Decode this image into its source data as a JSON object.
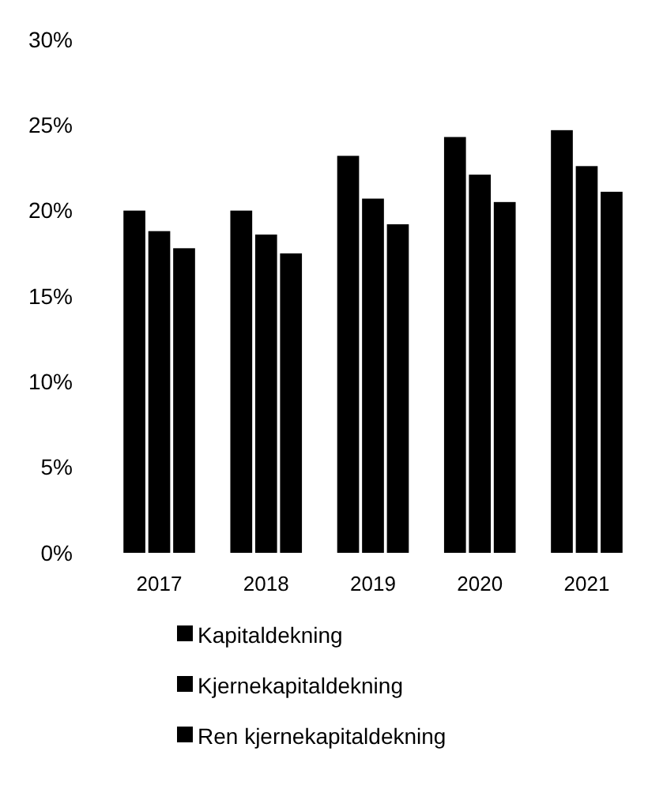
{
  "chart_data": {
    "type": "bar",
    "categories": [
      "2017",
      "2018",
      "2019",
      "2020",
      "2021"
    ],
    "series": [
      {
        "name": "Kapitaldekning",
        "color": "#000000",
        "values": [
          20.0,
          20.0,
          23.2,
          24.3,
          24.7
        ]
      },
      {
        "name": "Kjernekapitaldekning",
        "color": "#000000",
        "values": [
          18.8,
          18.6,
          20.7,
          22.1,
          22.6
        ]
      },
      {
        "name": "Ren kjernekapitaldekning",
        "color": "#000000",
        "values": [
          17.8,
          17.5,
          19.2,
          20.5,
          21.1
        ]
      }
    ],
    "ylim": [
      0,
      30
    ],
    "yticks": [
      {
        "value": 0,
        "label": "0%"
      },
      {
        "value": 5,
        "label": "5%"
      },
      {
        "value": 10,
        "label": "10%"
      },
      {
        "value": 15,
        "label": "15%"
      },
      {
        "value": 20,
        "label": "20%"
      },
      {
        "value": 25,
        "label": "25%"
      },
      {
        "value": 30,
        "label": "30%"
      }
    ],
    "grid": false,
    "legend": "bottom"
  }
}
